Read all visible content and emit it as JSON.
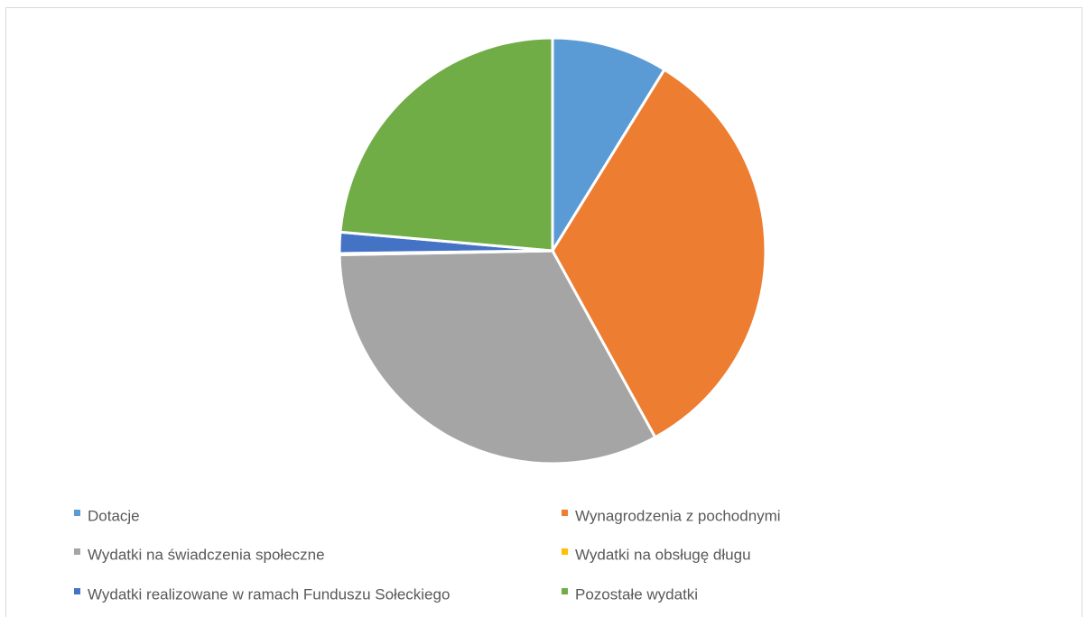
{
  "chart_data": {
    "type": "pie",
    "categories": [
      "Dotacje",
      "Wynagrodzenia z pochodnymi",
      "Wydatki na świadczenia społeczne",
      "Wydatki na obsługę długu",
      "Wydatki realizowane w ramach Funduszu Sołeckiego",
      "Pozostałe wydatki"
    ],
    "values": [
      8.8,
      33.2,
      32.7,
      0.1,
      1.6,
      23.6
    ],
    "colors": [
      "#5b9bd5",
      "#ed7d31",
      "#a5a5a5",
      "#ffc000",
      "#4472c4",
      "#70ad47"
    ],
    "legend": "bottom"
  }
}
